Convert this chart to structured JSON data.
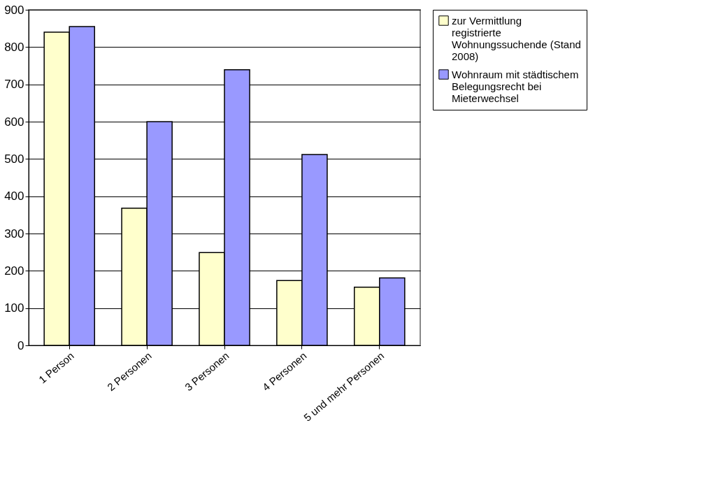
{
  "chart_data": {
    "type": "bar",
    "categories": [
      "1 Person",
      "2 Personen",
      "3 Personen",
      "4 Personen",
      "5 und mehr Personen"
    ],
    "series": [
      {
        "name": "zur Vermittlung registrierte Wohnungssuchende (Stand 2008)",
        "color": "#ffffcc",
        "values": [
          840,
          368,
          249,
          174,
          156
        ]
      },
      {
        "name": "Wohnraum mit städtischem Belegungsrecht bei Mieterwechsel",
        "color": "#9999ff",
        "values": [
          855,
          600,
          739,
          512,
          181
        ]
      }
    ],
    "ylim": [
      0,
      900
    ],
    "yticks": [
      0,
      100,
      200,
      300,
      400,
      500,
      600,
      700,
      800,
      900
    ],
    "grid": "y",
    "legend": "right"
  }
}
